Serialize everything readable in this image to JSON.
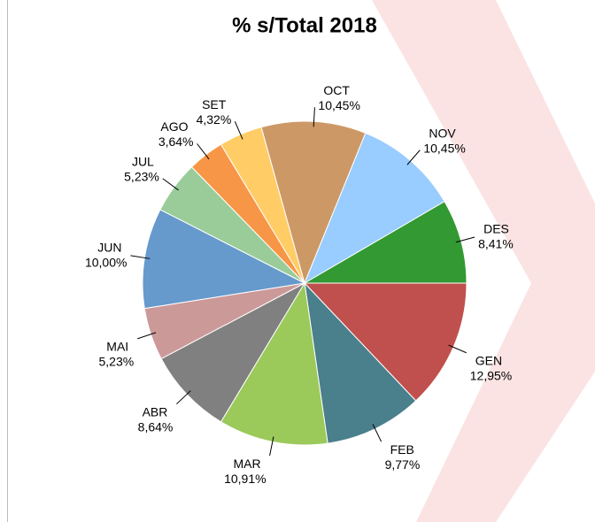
{
  "chart_data": {
    "type": "pie",
    "title": "% s/Total 2018",
    "categories": [
      "GEN",
      "FEB",
      "MAR",
      "ABR",
      "MAI",
      "JUN",
      "JUL",
      "AGO",
      "SET",
      "OCT",
      "NOV",
      "DES"
    ],
    "values": [
      12.95,
      9.77,
      10.91,
      8.64,
      5.23,
      10.0,
      5.23,
      3.64,
      4.32,
      10.45,
      10.45,
      8.41
    ],
    "value_labels": [
      "12,95%",
      "9,77%",
      "10,91%",
      "8,64%",
      "5,23%",
      "10,00%",
      "5,23%",
      "3,64%",
      "4,32%",
      "10,45%",
      "10,45%",
      "8,41%"
    ],
    "colors": [
      "#c0504d",
      "#4a7f8c",
      "#9bc95a",
      "#808080",
      "#cc9999",
      "#6699cc",
      "#99cc99",
      "#f79646",
      "#ffcc66",
      "#cc9966",
      "#99ccff",
      "#339933"
    ]
  }
}
